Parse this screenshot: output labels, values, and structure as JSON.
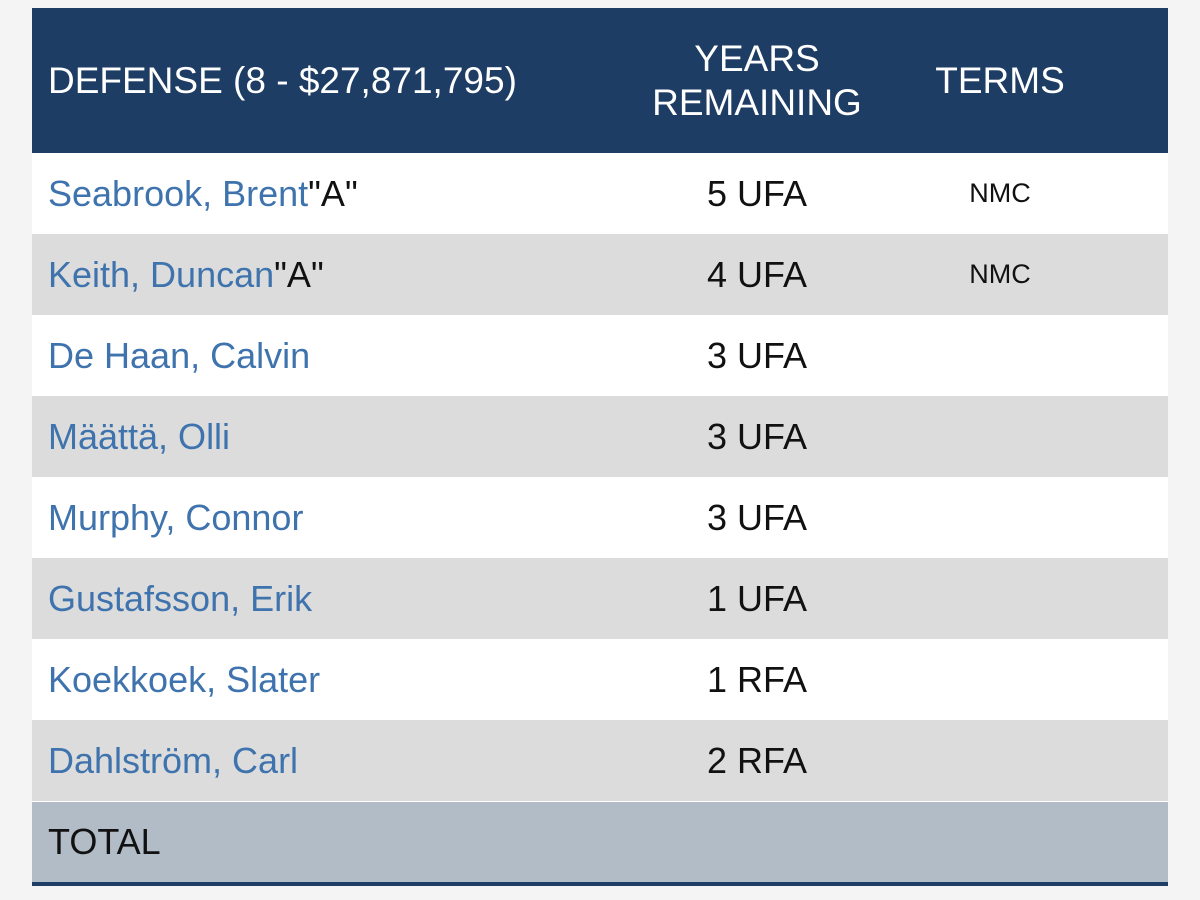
{
  "table": {
    "header": {
      "defense": "DEFENSE (8 - $27,871,795)",
      "years_line1": "YEARS",
      "years_line2": "REMAINING",
      "terms": "TERMS"
    },
    "rows": [
      {
        "name": "Seabrook, Brent",
        "tag": " \"A\"",
        "years": "5 UFA",
        "terms": "NMC"
      },
      {
        "name": "Keith, Duncan",
        "tag": " \"A\"",
        "years": "4 UFA",
        "terms": "NMC"
      },
      {
        "name": "De Haan, Calvin",
        "tag": "",
        "years": "3 UFA",
        "terms": ""
      },
      {
        "name": "Määttä, Olli",
        "tag": "",
        "years": "3 UFA",
        "terms": ""
      },
      {
        "name": "Murphy, Connor",
        "tag": "",
        "years": "3 UFA",
        "terms": ""
      },
      {
        "name": "Gustafsson, Erik",
        "tag": "",
        "years": "1 UFA",
        "terms": ""
      },
      {
        "name": "Koekkoek, Slater",
        "tag": "",
        "years": "1 RFA",
        "terms": ""
      },
      {
        "name": "Dahlström, Carl",
        "tag": "",
        "years": "2 RFA",
        "terms": ""
      }
    ],
    "total_label": "TOTAL"
  },
  "colors": {
    "header_bg": "#1e3d64",
    "link": "#3f73ad",
    "alt_row": "#dcdcdc",
    "total_bg": "#b1bcc7"
  }
}
